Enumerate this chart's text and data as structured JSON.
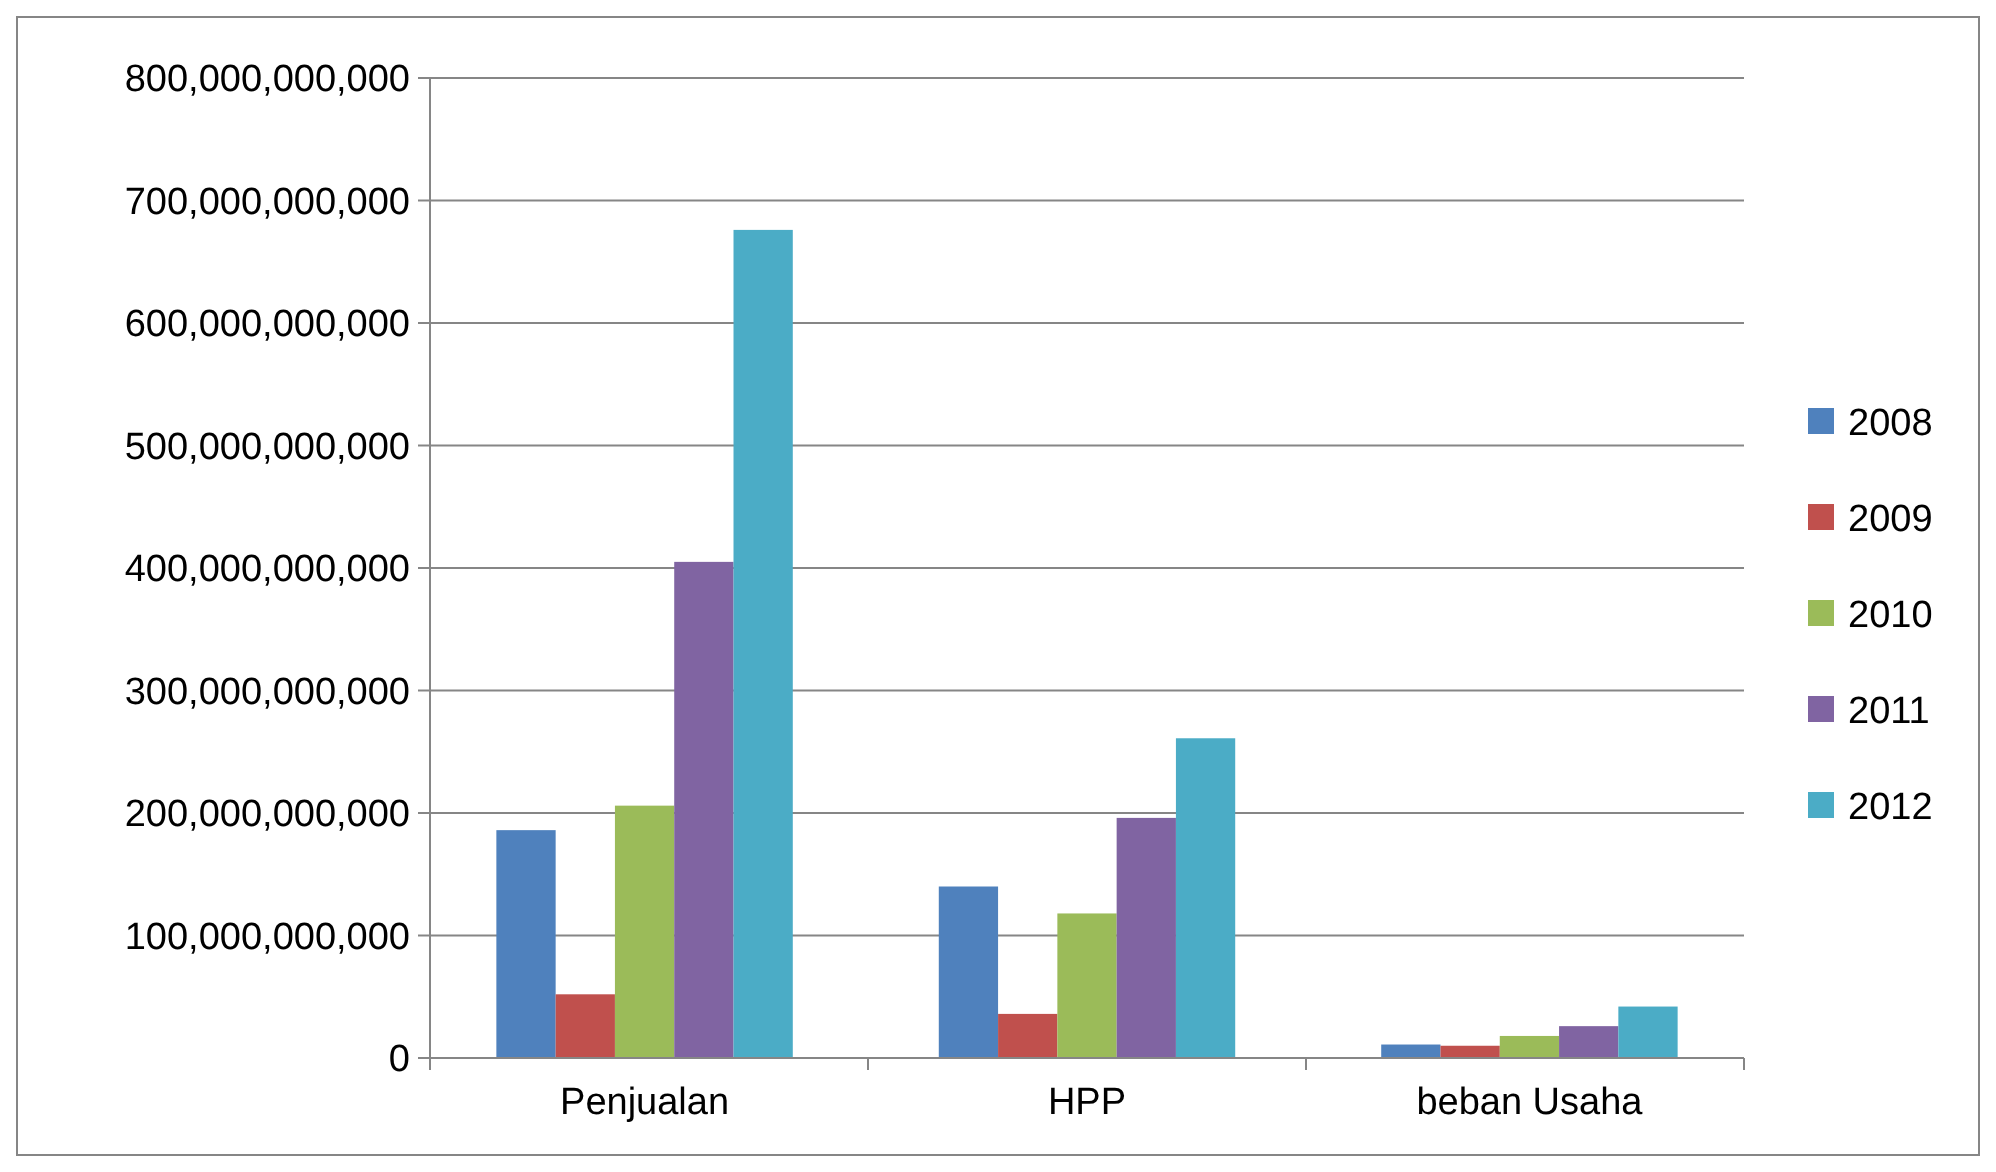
{
  "chart_data": {
    "type": "bar",
    "categories": [
      "Penjualan",
      "HPP",
      "beban Usaha"
    ],
    "series": [
      {
        "name": "2008",
        "color": "#4f81bd",
        "values": [
          186000000000,
          140000000000,
          11000000000
        ]
      },
      {
        "name": "2009",
        "color": "#c0504d",
        "values": [
          52000000000,
          36000000000,
          10000000000
        ]
      },
      {
        "name": "2010",
        "color": "#9bbb59",
        "values": [
          206000000000,
          118000000000,
          18000000000
        ]
      },
      {
        "name": "2011",
        "color": "#8064a2",
        "values": [
          405000000000,
          196000000000,
          26000000000
        ]
      },
      {
        "name": "2012",
        "color": "#4bacc6",
        "values": [
          676000000000,
          261000000000,
          42000000000
        ]
      }
    ],
    "ylim": [
      0,
      800000000000
    ],
    "yticks": [
      {
        "value": 0,
        "label": "0"
      },
      {
        "value": 100000000000,
        "label": "100,000,000,000"
      },
      {
        "value": 200000000000,
        "label": "200,000,000,000"
      },
      {
        "value": 300000000000,
        "label": "300,000,000,000"
      },
      {
        "value": 400000000000,
        "label": "400,000,000,000"
      },
      {
        "value": 500000000000,
        "label": "500,000,000,000"
      },
      {
        "value": 600000000000,
        "label": "600,000,000,000"
      },
      {
        "value": 700000000000,
        "label": "700,000,000,000"
      },
      {
        "value": 800000000000,
        "label": "800,000,000,000"
      }
    ],
    "grid": "y",
    "legend": "right"
  }
}
